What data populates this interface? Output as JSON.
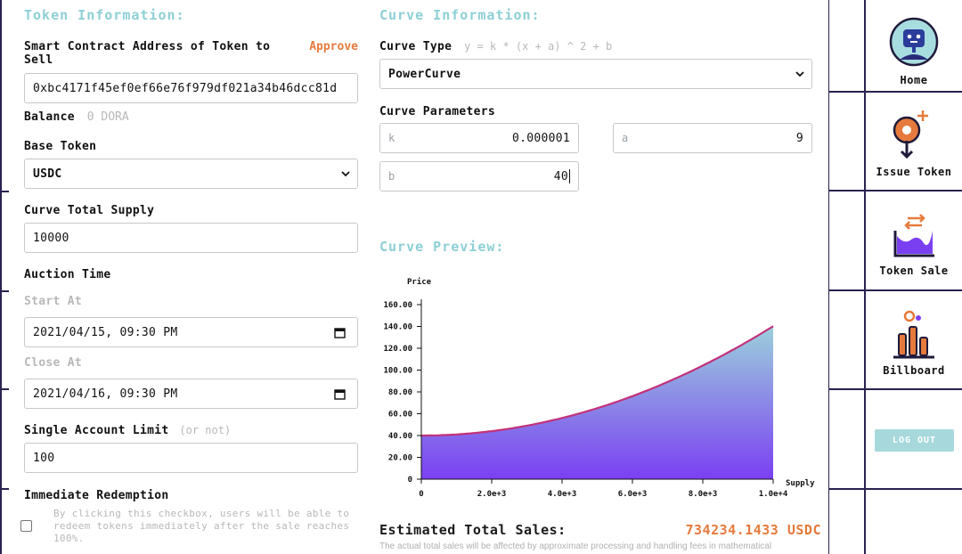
{
  "left": {
    "title": "Token Information:",
    "address_label": "Smart Contract Address of Token to Sell",
    "approve_label": "Approve",
    "address_value": "0xbc4171f45ef0ef66e76f979df021a34b46dcc81d",
    "balance_label": "Balance",
    "balance_value": "0 DORA",
    "base_token_label": "Base Token",
    "base_token_value": "USDC",
    "supply_label": "Curve Total Supply",
    "supply_value": "10000",
    "auction_label": "Auction Time",
    "start_label": "Start At",
    "start_value": "2021/04/15, 09:30 PM",
    "close_label": "Close At",
    "close_value": "2021/04/16, 09:30 PM",
    "limit_label": "Single Account Limit",
    "limit_hint": "(or not)",
    "limit_value": "100",
    "redeem_label": "Immediate Redemption",
    "redeem_text": "By clicking this checkbox, users will be able to redeem tokens immediately after the sale reaches 100%."
  },
  "right": {
    "title": "Curve Information:",
    "curve_type_label": "Curve Type",
    "curve_formula": "y = k * (x + a) ^ 2 + b",
    "curve_type_value": "PowerCurve",
    "params_label": "Curve Parameters",
    "params": {
      "k_label": "k",
      "k_value": "0.000001",
      "a_label": "a",
      "a_value": "9",
      "b_label": "b",
      "b_value": "40"
    },
    "preview_title": "Curve Preview:",
    "estimated_label": "Estimated Total Sales:",
    "estimated_value": "734234.1433 USDC",
    "note": "The actual total sales will be affected by approximate processing and handling fees in mathematical"
  },
  "chart_data": {
    "type": "area",
    "ylabel": "Price",
    "xlabel": "Supply",
    "xlim": [
      0,
      10000
    ],
    "ylim": [
      0,
      160
    ],
    "xticks": [
      0,
      2000,
      4000,
      6000,
      8000,
      10000
    ],
    "xtick_labels": [
      "0",
      "2.0e+3",
      "4.0e+3",
      "6.0e+3",
      "8.0e+3",
      "1.0e+4"
    ],
    "yticks": [
      0,
      20,
      40,
      60,
      80,
      100,
      120,
      140,
      160
    ],
    "ytick_labels": [
      "0",
      "20.00",
      "40.00",
      "60.00",
      "80.00",
      "100.00",
      "120.00",
      "140.00",
      "160.00"
    ],
    "formula": {
      "k": 1e-06,
      "a": 9,
      "b": 40
    },
    "series": [
      {
        "x": [
          0,
          1000,
          2000,
          3000,
          4000,
          5000,
          6000,
          7000,
          8000,
          9000,
          10000
        ],
        "values": [
          40,
          41,
          44,
          49,
          56,
          65,
          76,
          89,
          104,
          121,
          140
        ]
      }
    ],
    "fill_top": "#9bd0dc",
    "fill_bottom": "#7b3ff2",
    "line_color": "#c2327a"
  },
  "sidebar": {
    "items": [
      {
        "label": "Home",
        "icon": "robot-icon"
      },
      {
        "label": "Issue Token",
        "icon": "token-issue-icon"
      },
      {
        "label": "Token Sale",
        "icon": "token-sale-icon"
      },
      {
        "label": "Billboard",
        "icon": "billboard-icon"
      }
    ],
    "logout_label": "LOG OUT"
  },
  "colors": {
    "accent": "#e67a3c",
    "title": "#8dcfd6",
    "frame": "#2a2250"
  }
}
